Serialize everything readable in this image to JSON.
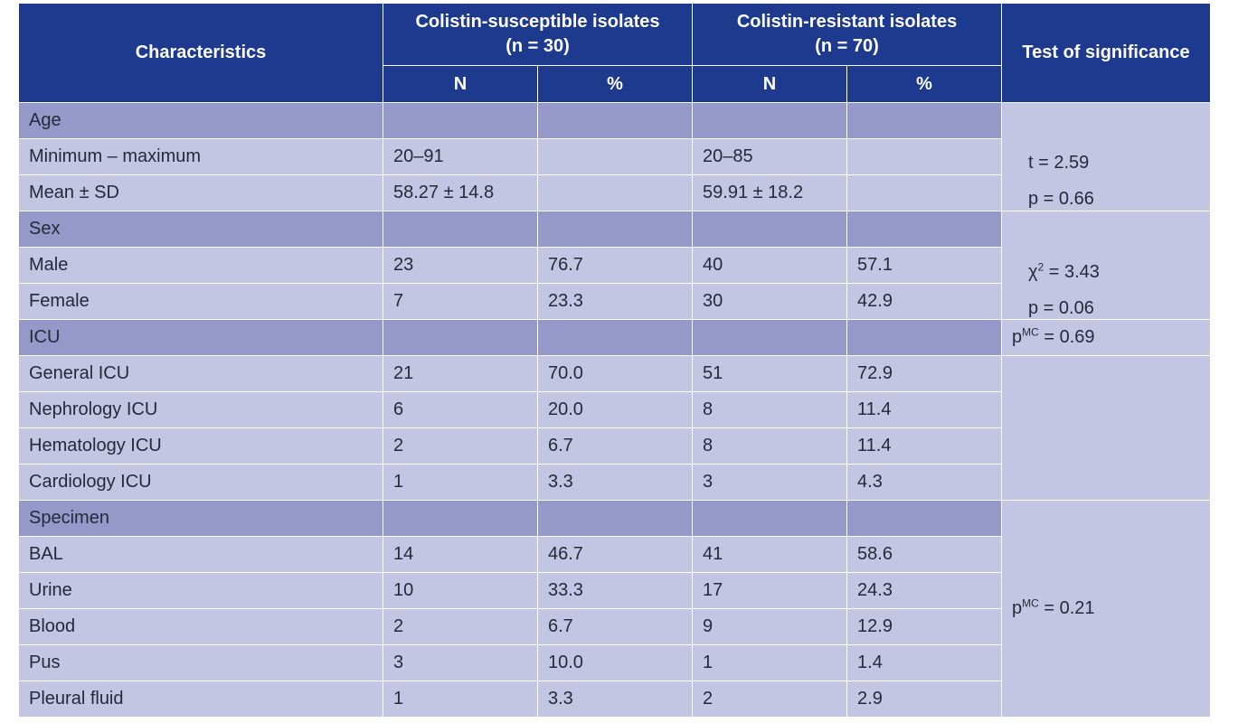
{
  "header": {
    "characteristics": "Characteristics",
    "susceptible_line1": "Colistin-susceptible isolates",
    "susceptible_line2": "(n = 30)",
    "resistant_line1": "Colistin-resistant isolates",
    "resistant_line2": "(n = 70)",
    "test": "Test of significance",
    "n": "N",
    "pct": "%"
  },
  "groups": {
    "age": {
      "label": "Age",
      "rows": [
        {
          "label": "Minimum – maximum",
          "sn": "20–91",
          "sp": "",
          "rn": "20–85",
          "rp": ""
        },
        {
          "label": "Mean ± SD",
          "sn": "58.27 ± 14.8",
          "sp": "",
          "rn": "59.91 ± 18.2",
          "rp": ""
        }
      ],
      "sig1": "t = 2.59",
      "sig2": "p = 0.66"
    },
    "sex": {
      "label": "Sex",
      "rows": [
        {
          "label": "Male",
          "sn": "23",
          "sp": "76.7",
          "rn": "40",
          "rp": "57.1"
        },
        {
          "label": "Female",
          "sn": "7",
          "sp": "23.3",
          "rn": "30",
          "rp": "42.9"
        }
      ],
      "sig1_sym": "χ",
      "sig1_sup": "2",
      "sig1_val": " = 3.43",
      "sig2": "p = 0.06"
    },
    "icu": {
      "label": "ICU",
      "sig_base": "p",
      "sig_sup": "MC",
      "sig_val": " = 0.69",
      "rows": [
        {
          "label": "General ICU",
          "sn": "21",
          "sp": "70.0",
          "rn": "51",
          "rp": "72.9"
        },
        {
          "label": "Nephrology ICU",
          "sn": "6",
          "sp": "20.0",
          "rn": "8",
          "rp": "11.4"
        },
        {
          "label": "Hematology ICU",
          "sn": "2",
          "sp": "6.7",
          "rn": "8",
          "rp": "11.4"
        },
        {
          "label": "Cardiology ICU",
          "sn": "1",
          "sp": "3.3",
          "rn": "3",
          "rp": "4.3"
        }
      ]
    },
    "specimen": {
      "label": "Specimen",
      "sig_base": "p",
      "sig_sup": "MC",
      "sig_val": " = 0.21",
      "rows": [
        {
          "label": "BAL",
          "sn": "14",
          "sp": "46.7",
          "rn": "41",
          "rp": "58.6"
        },
        {
          "label": "Urine",
          "sn": "10",
          "sp": "33.3",
          "rn": "17",
          "rp": "24.3"
        },
        {
          "label": "Blood",
          "sn": "2",
          "sp": "6.7",
          "rn": "9",
          "rp": "12.9"
        },
        {
          "label": "Pus",
          "sn": "3",
          "sp": "10.0",
          "rn": "1",
          "rp": "1.4"
        },
        {
          "label": "Pleural fluid",
          "sn": "1",
          "sp": "3.3",
          "rn": "2",
          "rp": "2.9"
        }
      ]
    }
  }
}
